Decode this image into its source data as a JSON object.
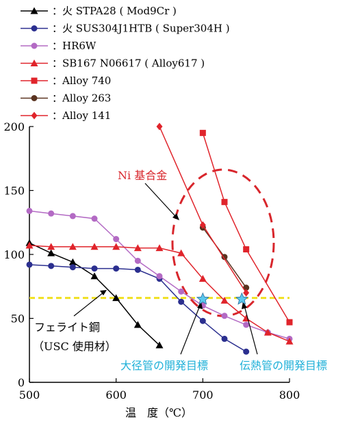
{
  "chart_data": {
    "type": "line",
    "xlabel": "温　度（℃）",
    "ylabel": "",
    "xlim": [
      500,
      800
    ],
    "ylim": [
      0,
      200
    ],
    "xticks": [
      "500",
      "600",
      "700",
      "800"
    ],
    "yticks": [
      "0",
      "50",
      "100",
      "150",
      "200"
    ],
    "grid": false,
    "legend_position": "top-left",
    "series": [
      {
        "name": "火 STPA28 ( Mod9Cr )",
        "color": "#000000",
        "marker": "triangle",
        "x": [
          500,
          525,
          550,
          575,
          600,
          625,
          650
        ],
        "y": [
          109,
          101,
          94,
          83,
          66,
          45,
          29
        ]
      },
      {
        "name": "火 SUS304J1HTB ( Super304H )",
        "color": "#2b2f8f",
        "marker": "circle",
        "x": [
          500,
          525,
          550,
          575,
          600,
          625,
          650,
          675,
          700,
          725,
          750
        ],
        "y": [
          92,
          91,
          90,
          89,
          89,
          88,
          81,
          63,
          48,
          34,
          24
        ]
      },
      {
        "name": "HR6W",
        "color": "#b36ac4",
        "marker": "circle",
        "x": [
          500,
          525,
          550,
          575,
          600,
          625,
          650,
          675,
          700,
          725,
          750,
          775,
          800
        ],
        "y": [
          134,
          132,
          130,
          128,
          112,
          95,
          83,
          71,
          60,
          52,
          45,
          39,
          34
        ]
      },
      {
        "name": "SB167 N06617 ( Alloy617 )",
        "color": "#e0242b",
        "marker": "triangle",
        "x": [
          500,
          525,
          550,
          575,
          600,
          625,
          650,
          675,
          700,
          725,
          750,
          775,
          800
        ],
        "y": [
          107,
          106,
          106,
          106,
          106,
          105,
          105,
          101,
          81,
          64,
          50,
          39,
          32
        ]
      },
      {
        "name": "Alloy 740",
        "color": "#e0242b",
        "marker": "square",
        "x": [
          700,
          725,
          750,
          800
        ],
        "y": [
          195,
          141,
          104,
          47
        ]
      },
      {
        "name": "Alloy 263",
        "color": "#5a3320",
        "marker": "circle",
        "x": [
          700,
          725,
          750
        ],
        "y": [
          121,
          98,
          74
        ]
      },
      {
        "name": "Alloy 141",
        "color": "#e0242b",
        "marker": "diamond",
        "x": [
          650,
          700,
          750
        ],
        "y": [
          200,
          123,
          70
        ]
      }
    ],
    "reference_line": {
      "y": 66,
      "color": "#f0e020",
      "style": "dashed"
    },
    "target_points": [
      {
        "x": 700,
        "y": 65,
        "label": "大径管の開発目標"
      },
      {
        "x": 745,
        "y": 65,
        "label": "伝熱管の開発目標"
      }
    ],
    "annotations": {
      "ni_alloy": "Ni 基合金",
      "ferrite_line1": "フェライト鋼",
      "ferrite_line2": "（USC 使用材）"
    },
    "colors": {
      "annotation_red": "#d8262c",
      "target_star": "#5ac8ee",
      "annotation_cyan": "#1fb0d8"
    }
  }
}
